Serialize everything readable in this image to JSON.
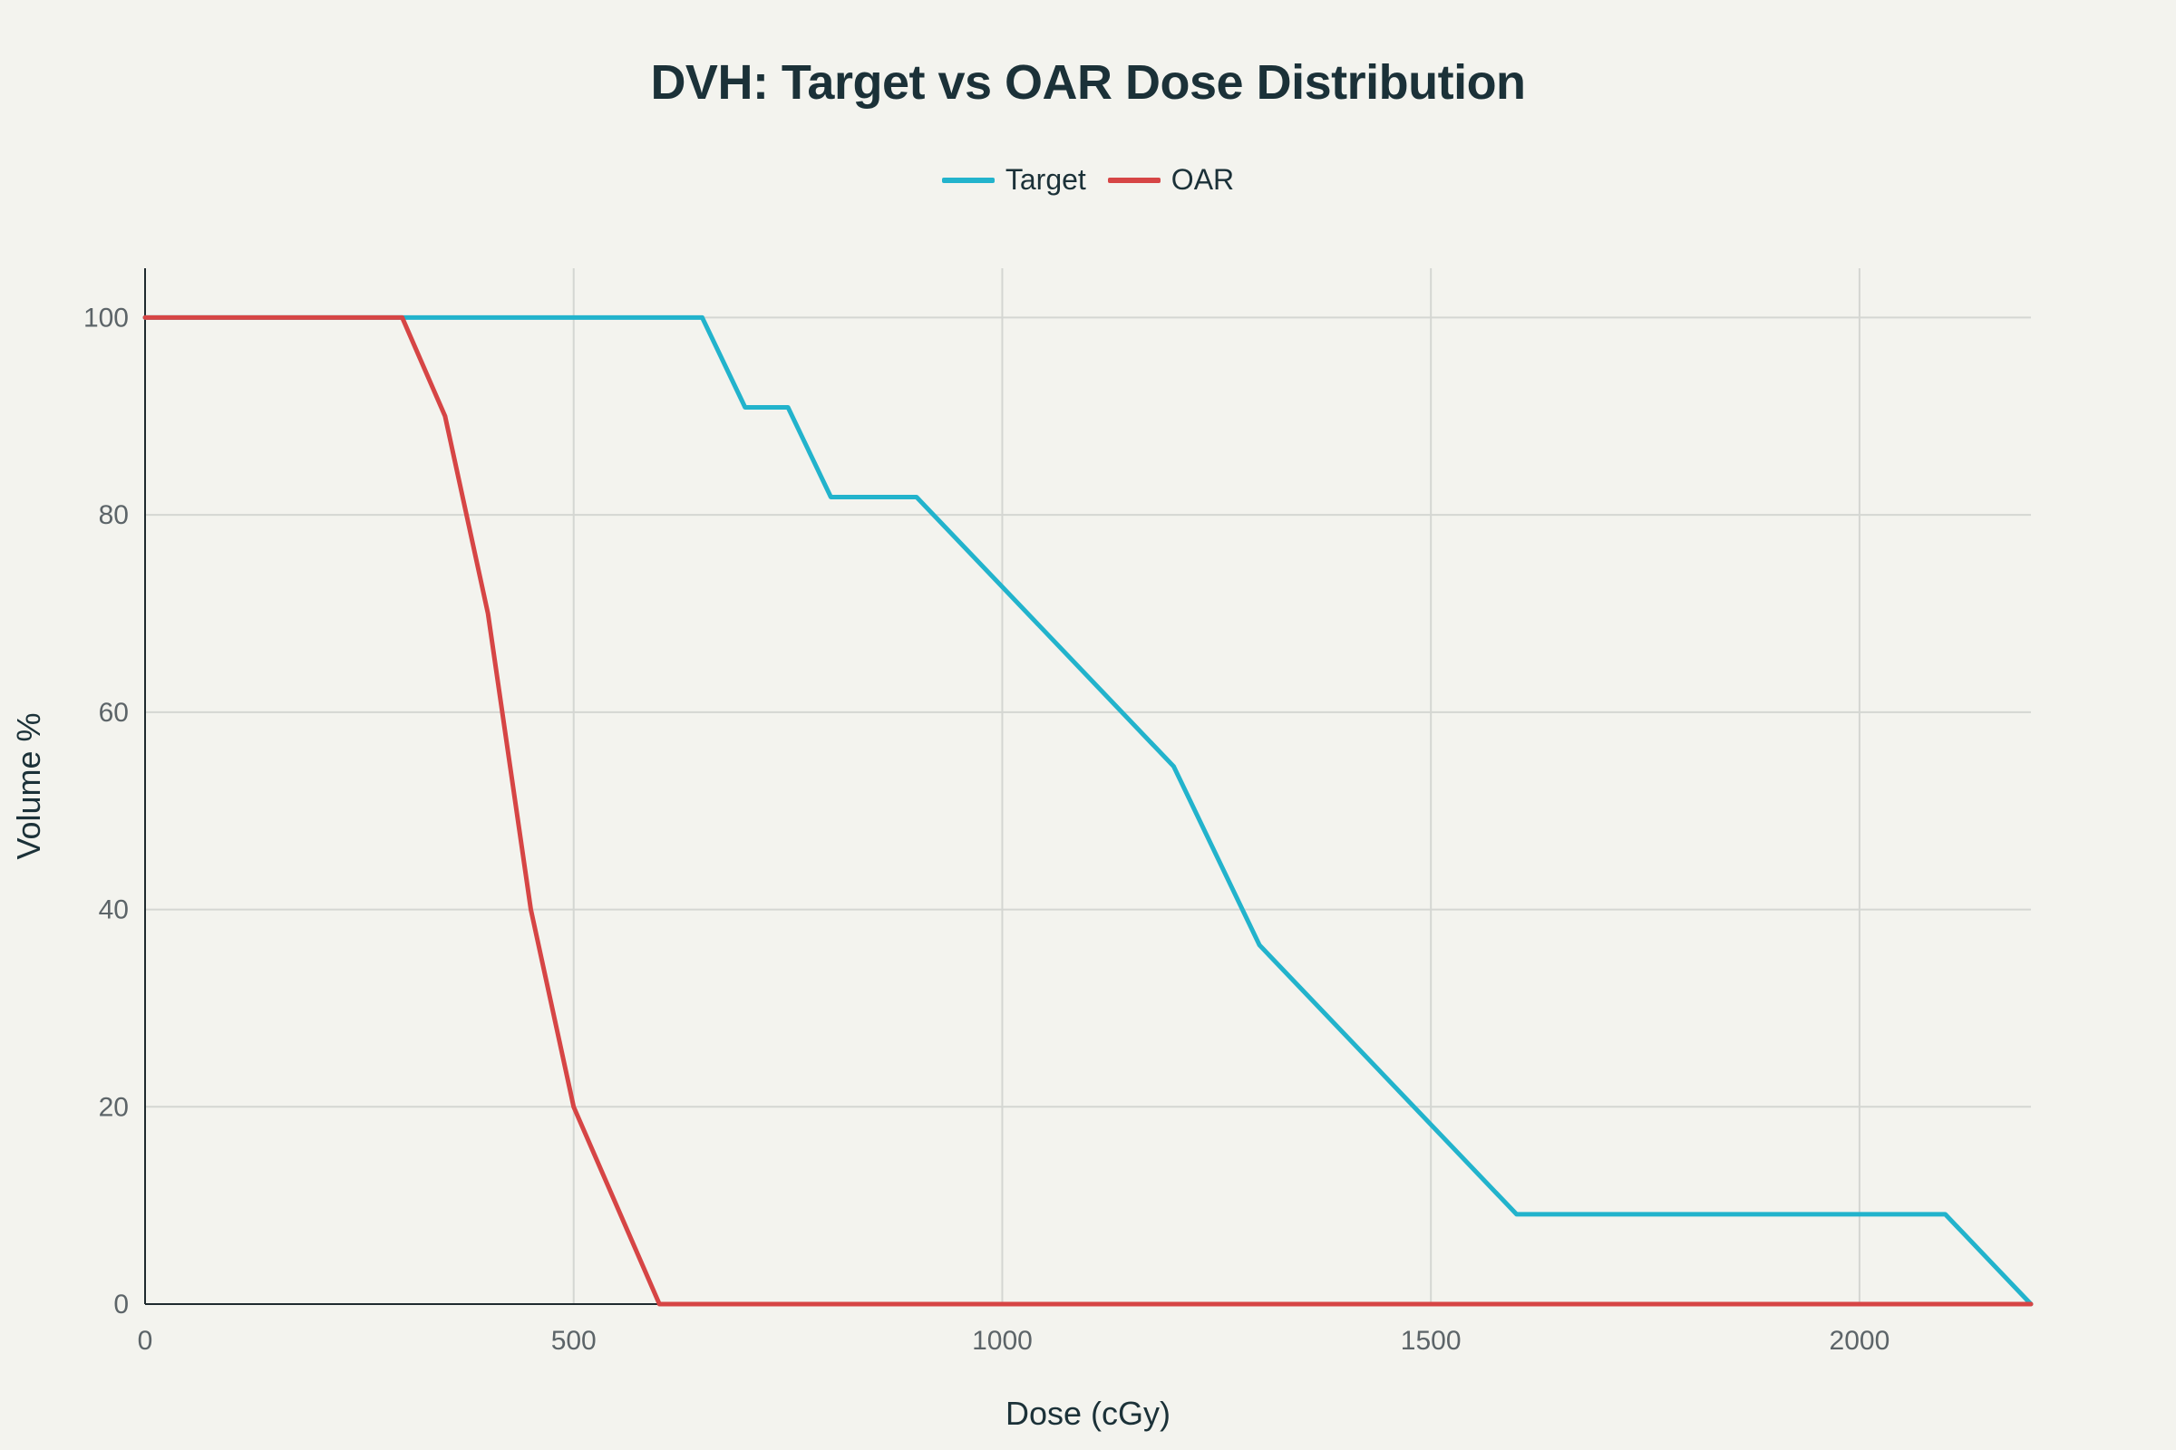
{
  "chart_data": {
    "type": "line",
    "title": "DVH: Target vs OAR Dose Distribution",
    "xlabel": "Dose (cGy)",
    "ylabel": "Volume %",
    "xlim": [
      0,
      2200
    ],
    "ylim": [
      0,
      105
    ],
    "xticks": [
      0,
      500,
      1000,
      1500,
      2000
    ],
    "yticks": [
      0,
      20,
      40,
      60,
      80,
      100
    ],
    "grid": true,
    "legend_position": "top-center",
    "series": [
      {
        "name": "Target",
        "color": "#22b3cc",
        "x": [
          0,
          650,
          700,
          750,
          800,
          900,
          1200,
          1300,
          1600,
          2100,
          2200
        ],
        "y": [
          100,
          100,
          90.9,
          90.9,
          81.8,
          81.8,
          54.5,
          36.4,
          9.1,
          9.1,
          0
        ]
      },
      {
        "name": "OAR",
        "color": "#d64545",
        "x": [
          0,
          300,
          350,
          400,
          450,
          500,
          600,
          2200
        ],
        "y": [
          100,
          100,
          90,
          70,
          40,
          20,
          0,
          0
        ]
      }
    ]
  }
}
